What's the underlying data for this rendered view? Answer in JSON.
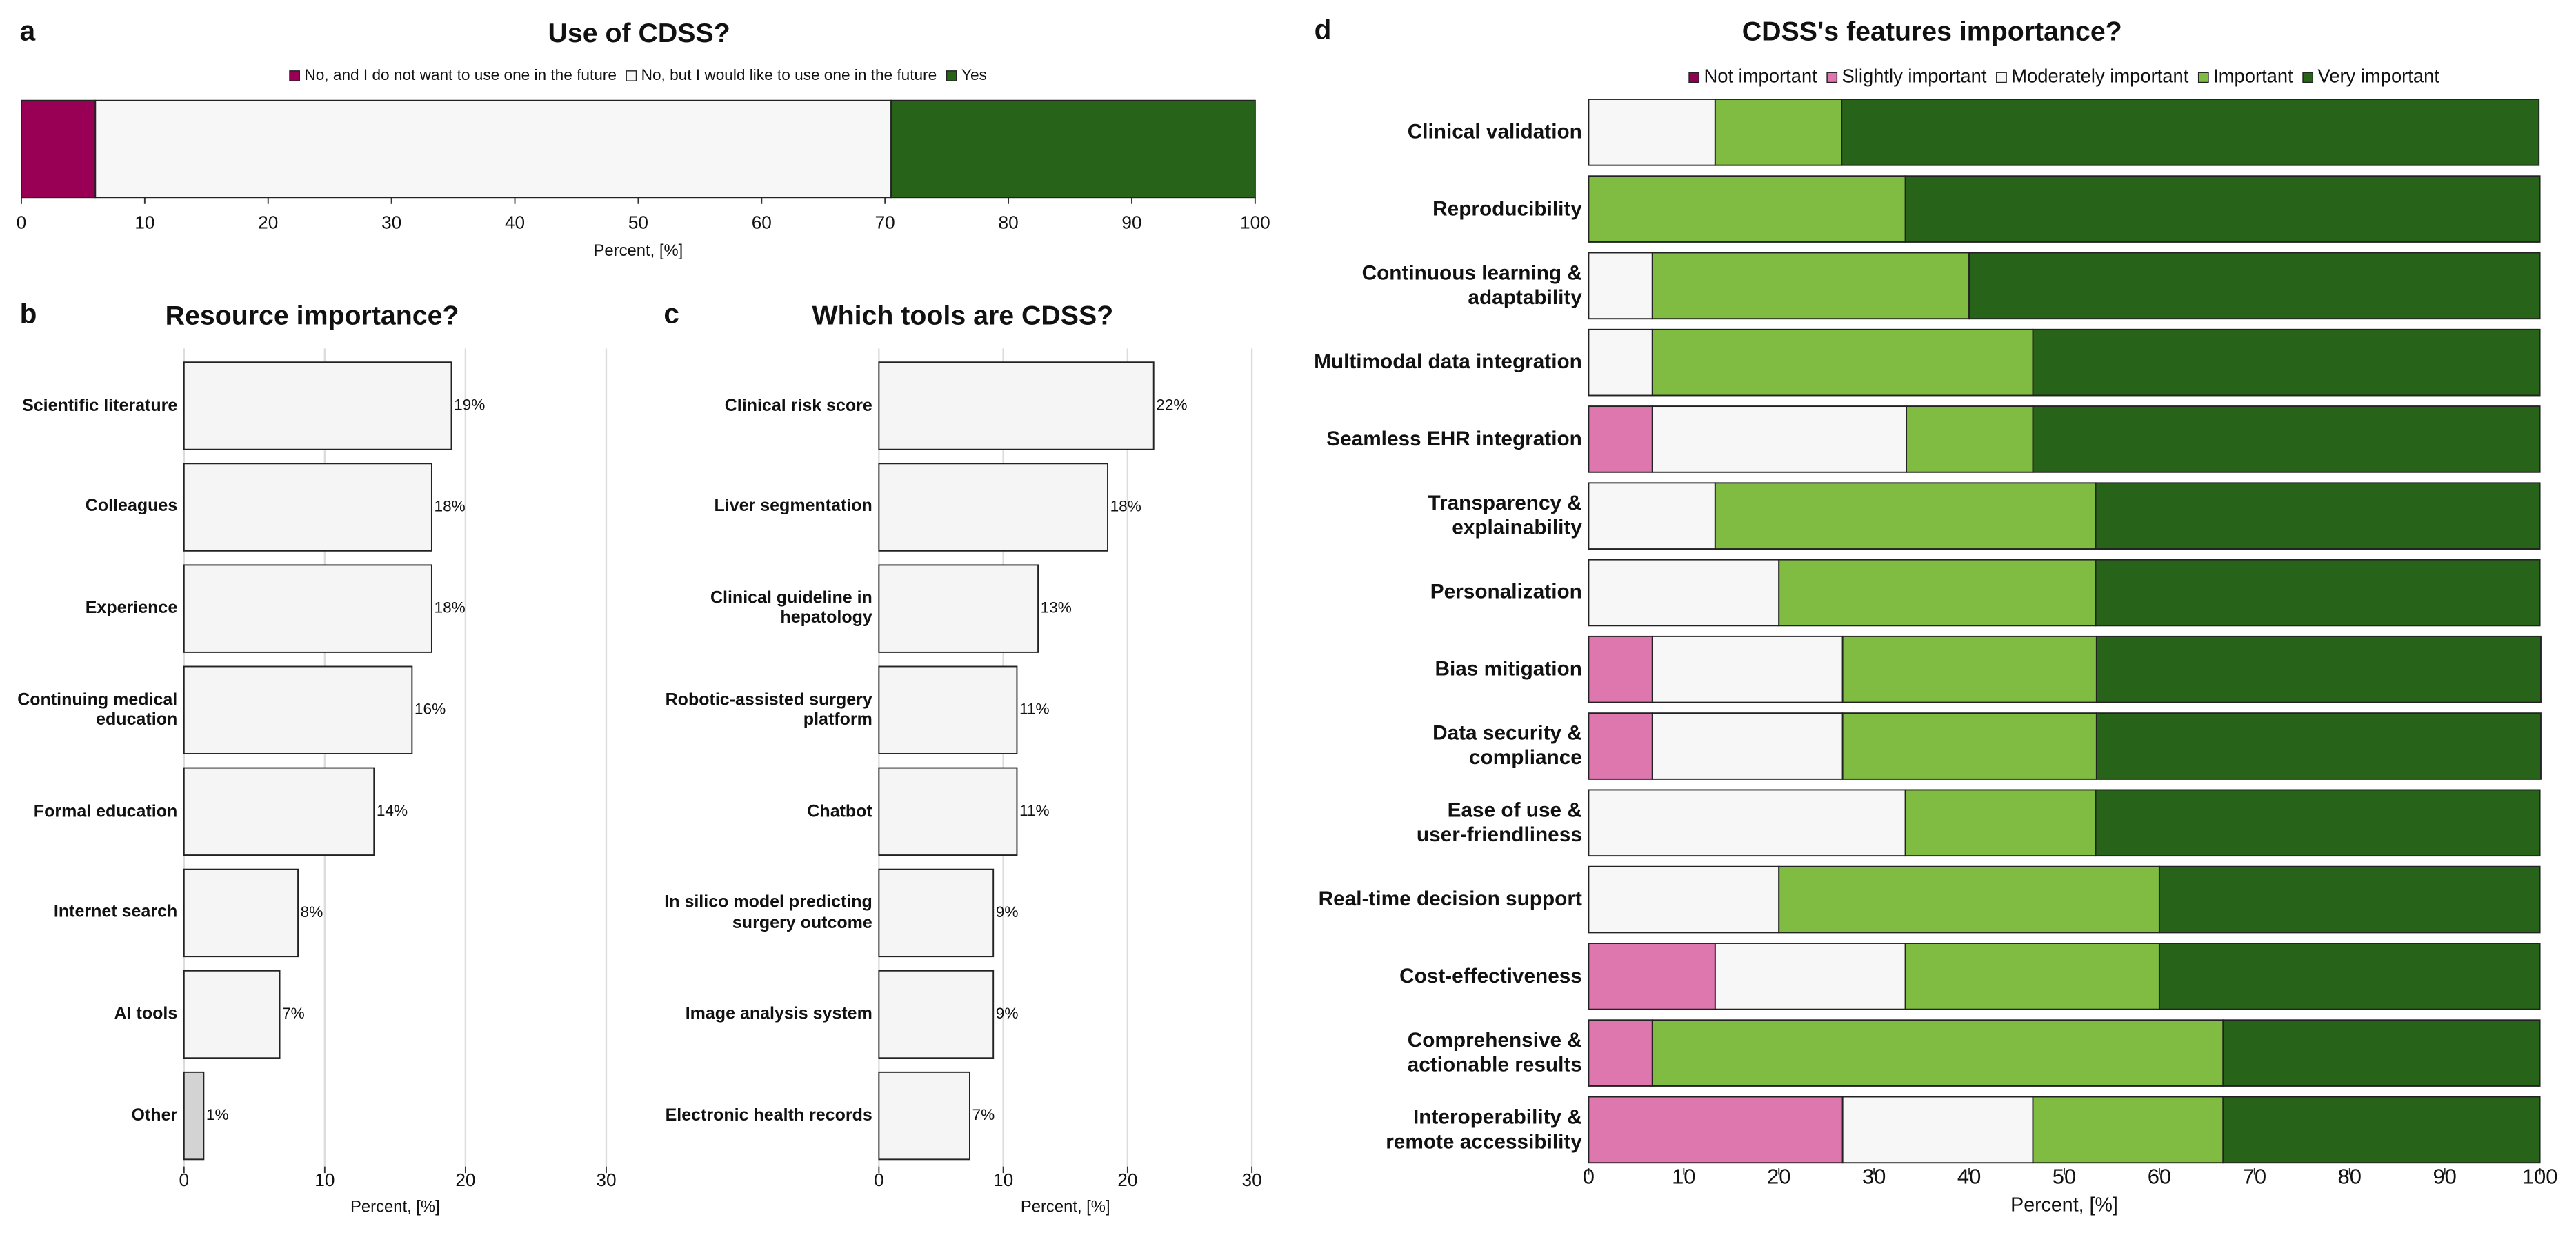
{
  "chart_data": [
    {
      "type": "stacked_bar",
      "panel_label": "a",
      "title": "Use of CDSS?",
      "xlabel": "Percent, [%]",
      "categories": [
        null
      ],
      "series": [
        {
          "name": "No, and I do not want to use one in the future",
          "color": "#990055",
          "values": [
            6
          ]
        },
        {
          "name": "No, but I would like to use one in the future",
          "color": "#f7f7f7",
          "values": [
            64.5
          ]
        },
        {
          "name": "Yes",
          "color": "#276419",
          "values": [
            29.5
          ]
        }
      ],
      "xlim": [
        0,
        100
      ],
      "xticks": [
        0,
        10,
        20,
        30,
        40,
        50,
        60,
        70,
        80,
        90,
        100
      ],
      "legend": "top"
    },
    {
      "type": "bar",
      "panel_label": "b",
      "title": "Resource importance?",
      "xlabel": "Percent, [%]",
      "categories": [
        "Scientific literature",
        "Colleagues",
        "Experience",
        "Continuing medical\neducation",
        "Formal education",
        "Internet search",
        "AI tools",
        "Other"
      ],
      "values": [
        19.0,
        17.6,
        17.6,
        16.2,
        13.5,
        8.1,
        6.8,
        1.4
      ],
      "value_labels": [
        "19%",
        "18%",
        "18%",
        "16%",
        "14%",
        "8%",
        "7%",
        "1%"
      ],
      "colors": [
        "#f5f5f5",
        "#f5f5f5",
        "#f5f5f5",
        "#f5f5f5",
        "#f5f5f5",
        "#f5f5f5",
        "#f5f5f5",
        "#d3d3d3"
      ],
      "xlim": [
        0,
        30
      ],
      "xticks": [
        0,
        10,
        20,
        30
      ],
      "grid": true
    },
    {
      "type": "bar",
      "panel_label": "c",
      "title": "Which tools are CDSS?",
      "xlabel": "Percent, [%]",
      "categories": [
        "Clinical risk score",
        "Liver segmentation",
        "Clinical guideline in\nhepatology",
        "Robotic-assisted surgery\nplatform",
        "Chatbot",
        "In silico model predicting\nsurgery outcome",
        "Image analysis system",
        "Electronic health records"
      ],
      "values": [
        22.1,
        18.4,
        12.8,
        11.1,
        11.1,
        9.2,
        9.2,
        7.3
      ],
      "value_labels": [
        "22%",
        "18%",
        "13%",
        "11%",
        "11%",
        "9%",
        "9%",
        "7%"
      ],
      "color": "#f5f5f5",
      "xlim": [
        0,
        30
      ],
      "xticks": [
        0,
        10,
        20,
        30
      ],
      "grid": true
    },
    {
      "type": "stacked_bar",
      "panel_label": "d",
      "title": "CDSS's features importance?",
      "xlabel": "Percent, [%]",
      "categories": [
        "Clinical validation",
        "Reproducibility",
        "Continuous learning &\nadaptability",
        "Multimodal data integration",
        "Seamless EHR integration",
        "Transparency &\nexplainability",
        "Personalization",
        "Bias mitigation",
        "Data security &\ncompliance",
        "Ease of use &\nuser-friendliness",
        "Real-time decision support",
        "Cost-effectiveness",
        "Comprehensive &\nactionable results",
        "Interoperability &\nremote accessibility"
      ],
      "series": [
        {
          "name": "Not important",
          "color": "#8e0152",
          "values": [
            0,
            0,
            0,
            0,
            0,
            0,
            0,
            0,
            0,
            0,
            0,
            0,
            0,
            0
          ]
        },
        {
          "name": "Slightly important",
          "color": "#de77ae",
          "values": [
            0,
            0,
            0,
            0,
            6.7,
            0,
            0,
            6.7,
            6.7,
            0,
            0,
            13.3,
            6.7,
            26.7
          ]
        },
        {
          "name": "Moderately important",
          "color": "#f7f7f7",
          "values": [
            13.3,
            0,
            6.7,
            6.7,
            26.7,
            13.3,
            20,
            20,
            20,
            33.3,
            20,
            20,
            0,
            20
          ]
        },
        {
          "name": "Important",
          "color": "#7fbc41",
          "values": [
            13.3,
            33.3,
            33.3,
            40,
            13.3,
            40,
            33.3,
            26.7,
            26.7,
            20,
            40,
            26.7,
            60,
            20
          ]
        },
        {
          "name": "Very important",
          "color": "#276419",
          "values": [
            73.3,
            66.7,
            60,
            53.3,
            53.3,
            46.7,
            46.7,
            46.7,
            46.7,
            46.7,
            40,
            40,
            33.3,
            33.3
          ]
        }
      ],
      "xlim": [
        0,
        100
      ],
      "xticks": [
        0,
        10,
        20,
        30,
        40,
        50,
        60,
        70,
        80,
        90,
        100
      ],
      "legend": "top"
    }
  ]
}
